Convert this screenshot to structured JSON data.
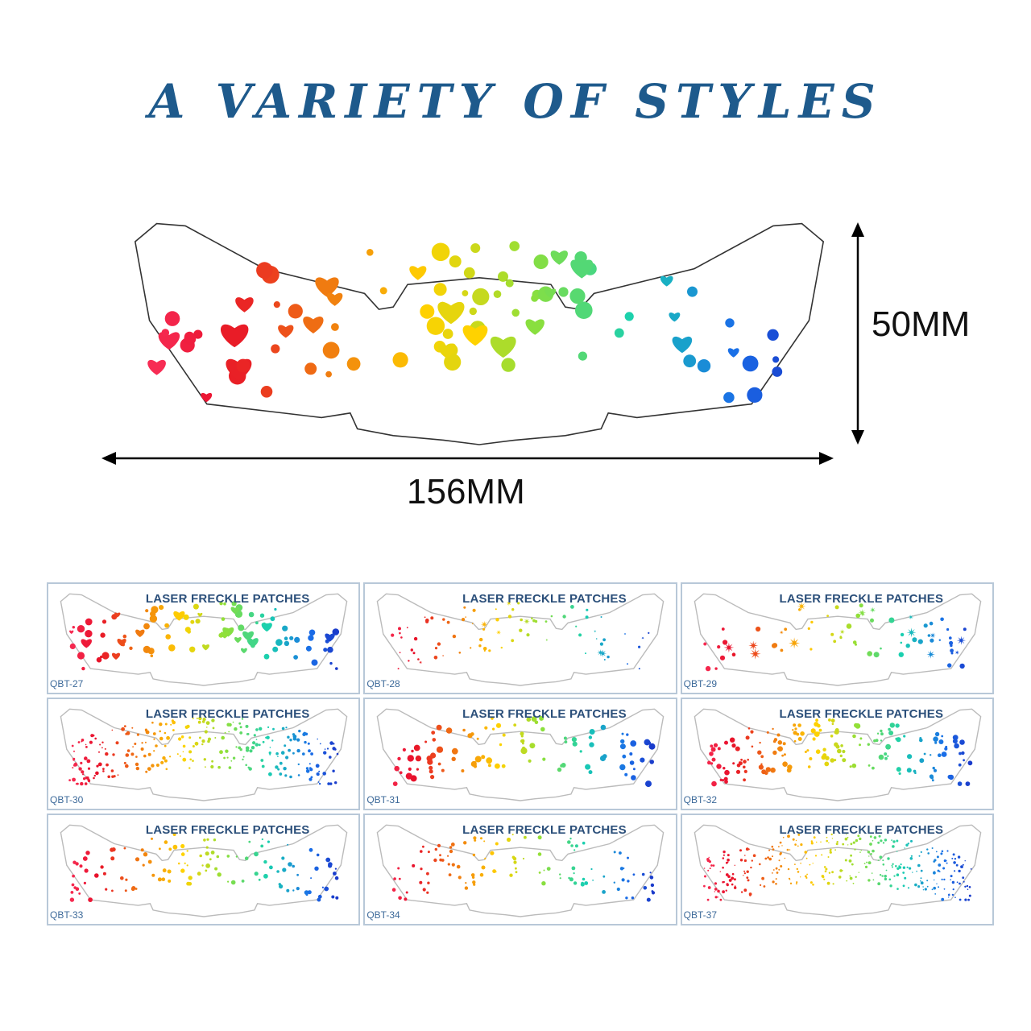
{
  "title": "A VARIETY OF STYLES",
  "dimensions": {
    "height": "50MM",
    "width": "156MM"
  },
  "card_title": "LASER FRECKLE PATCHES",
  "styles": [
    {
      "code": "QBT-27",
      "pattern": "hearts"
    },
    {
      "code": "QBT-28",
      "pattern": "sparse-stars"
    },
    {
      "code": "QBT-29",
      "pattern": "stars"
    },
    {
      "code": "QBT-30",
      "pattern": "dense-dots"
    },
    {
      "code": "QBT-31",
      "pattern": "dots-large"
    },
    {
      "code": "QBT-32",
      "pattern": "dots-medium"
    },
    {
      "code": "QBT-33",
      "pattern": "dots-small"
    },
    {
      "code": "QBT-34",
      "pattern": "dots-fine"
    },
    {
      "code": "QBT-37",
      "pattern": "dense-fine"
    }
  ],
  "colors": {
    "title": "#1e5a8c",
    "gradient": [
      "#ff3b6a",
      "#e8102a",
      "#f07a10",
      "#ffd200",
      "#8ee03a",
      "#19d0b0",
      "#1a6ee8",
      "#1a1ab8"
    ]
  }
}
